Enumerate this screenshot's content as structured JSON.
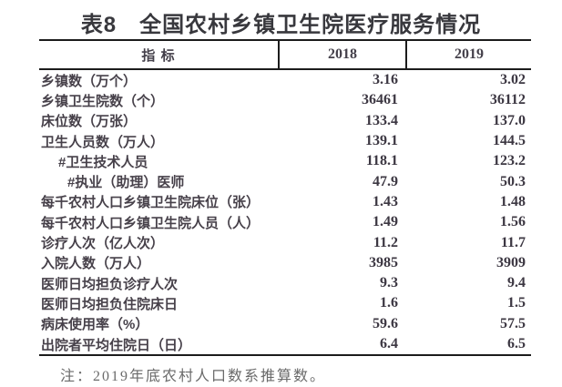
{
  "title": "表8　全国农村乡镇卫生院医疗服务情况",
  "table": {
    "columns": [
      "指 标",
      "2018",
      "2019"
    ],
    "rows": [
      {
        "label": "乡镇数（万个）",
        "indent": 0,
        "v2018": "3.16",
        "v2019": "3.02"
      },
      {
        "label": "乡镇卫生院数（个）",
        "indent": 0,
        "v2018": "36461",
        "v2019": "36112"
      },
      {
        "label": "床位数（万张）",
        "indent": 0,
        "v2018": "133.4",
        "v2019": "137.0"
      },
      {
        "label": "卫生人员数（万人）",
        "indent": 0,
        "v2018": "139.1",
        "v2019": "144.5"
      },
      {
        "label": "#卫生技术人员",
        "indent": 1,
        "v2018": "118.1",
        "v2019": "123.2"
      },
      {
        "label": "#执业（助理）医师",
        "indent": 2,
        "v2018": "47.9",
        "v2019": "50.3"
      },
      {
        "label": "每千农村人口乡镇卫生院床位（张）",
        "indent": 0,
        "v2018": "1.43",
        "v2019": "1.48"
      },
      {
        "label": "每千农村人口乡镇卫生院人员（人）",
        "indent": 0,
        "v2018": "1.49",
        "v2019": "1.56"
      },
      {
        "label": "诊疗人次（亿人次）",
        "indent": 0,
        "v2018": "11.2",
        "v2019": "11.7"
      },
      {
        "label": "入院人数（万人）",
        "indent": 0,
        "v2018": "3985",
        "v2019": "3909"
      },
      {
        "label": "医师日均担负诊疗人次",
        "indent": 0,
        "v2018": "9.3",
        "v2019": "9.4"
      },
      {
        "label": "医师日均担负住院床日",
        "indent": 0,
        "v2018": "1.6",
        "v2019": "1.5"
      },
      {
        "label": "病床使用率（%）",
        "indent": 0,
        "v2018": "59.6",
        "v2019": "57.5"
      },
      {
        "label": "出院者平均住院日（日）",
        "indent": 0,
        "v2018": "6.4",
        "v2019": "6.5"
      }
    ]
  },
  "note": "注：2019年底农村人口数系推算数。",
  "colors": {
    "title_text": "#38383d",
    "body_text": "#47414a",
    "number_text": "#3c3742",
    "note_text": "#6a6a6a",
    "rule_line": "#1c1c1c",
    "background": "#ffffff"
  }
}
